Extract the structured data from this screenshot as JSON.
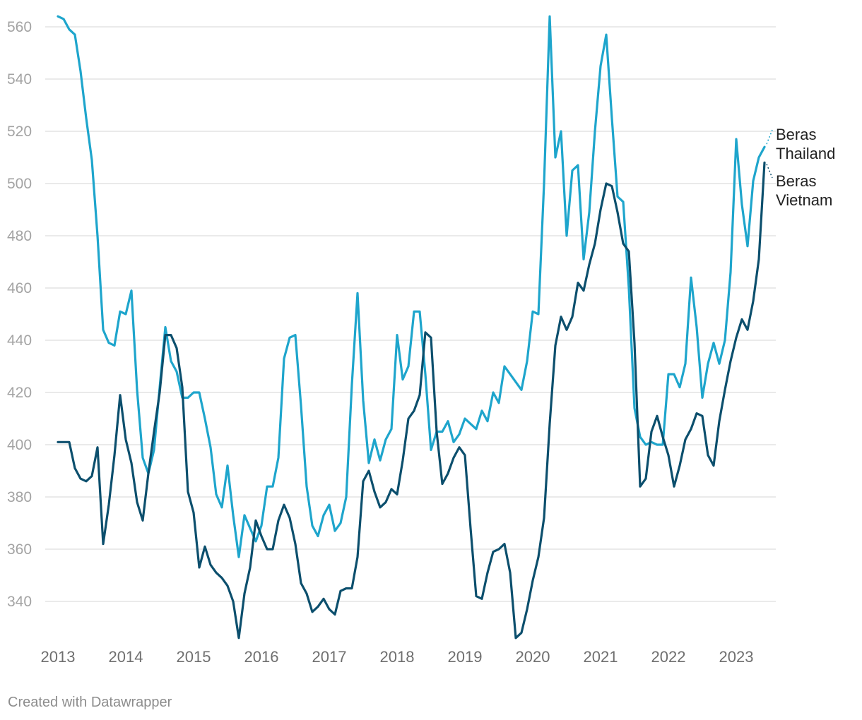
{
  "chart_data": {
    "type": "line",
    "title": "",
    "xlabel": "",
    "ylabel": "",
    "x_start": "2013-01",
    "x_frequency": "monthly",
    "xlim": [
      "2013-01",
      "2023-08"
    ],
    "ylim": [
      325,
      565
    ],
    "y_ticks": [
      340,
      360,
      380,
      400,
      420,
      440,
      460,
      480,
      500,
      520,
      540,
      560
    ],
    "x_ticks": [
      "2013",
      "2014",
      "2015",
      "2016",
      "2017",
      "2018",
      "2019",
      "2020",
      "2021",
      "2022",
      "2023"
    ],
    "grid": true,
    "legend": "inline labels at line ends (right)",
    "series": [
      {
        "name": "Beras Thailand",
        "color": "#1ea5cc",
        "values": [
          564,
          563,
          559,
          557,
          543,
          525,
          509,
          480,
          444,
          439,
          438,
          451,
          450,
          459,
          421,
          395,
          389,
          398,
          422,
          445,
          432,
          428,
          418,
          418,
          420,
          420,
          410,
          399,
          381,
          376,
          392,
          373,
          357,
          373,
          368,
          363,
          369,
          384,
          384,
          395,
          433,
          441,
          442,
          415,
          384,
          369,
          365,
          373,
          377,
          367,
          370,
          380,
          423,
          458,
          417,
          393,
          402,
          394,
          402,
          406,
          442,
          425,
          430,
          451,
          451,
          427,
          398,
          405,
          405,
          409,
          401,
          404,
          410,
          408,
          406,
          413,
          409,
          420,
          416,
          430,
          427,
          424,
          421,
          432,
          451,
          450,
          500,
          564,
          510,
          520,
          480,
          505,
          507,
          471,
          489,
          520,
          545,
          557,
          525,
          495,
          493,
          460,
          414,
          403,
          400,
          401,
          400,
          400,
          427,
          427,
          422,
          431,
          464,
          445,
          418,
          431,
          439,
          431,
          440,
          466,
          517,
          492,
          476,
          501,
          510,
          514
        ]
      },
      {
        "name": "Beras Vietnam",
        "color": "#0c4f6d",
        "values": [
          401,
          401,
          401,
          391,
          387,
          386,
          388,
          399,
          362,
          377,
          396,
          419,
          402,
          393,
          378,
          371,
          389,
          405,
          420,
          442,
          442,
          437,
          422,
          382,
          374,
          353,
          361,
          354,
          351,
          349,
          346,
          340,
          326,
          343,
          353,
          371,
          365,
          360,
          360,
          371,
          377,
          372,
          362,
          347,
          343,
          336,
          338,
          341,
          337,
          335,
          344,
          345,
          345,
          357,
          386,
          390,
          382,
          376,
          378,
          383,
          381,
          394,
          410,
          413,
          419,
          443,
          441,
          405,
          385,
          389,
          395,
          399,
          396,
          368,
          342,
          341,
          351,
          359,
          360,
          362,
          351,
          326,
          328,
          337,
          348,
          357,
          372,
          408,
          438,
          449,
          444,
          449,
          462,
          459,
          469,
          477,
          490,
          500,
          499,
          489,
          477,
          474,
          439,
          384,
          387,
          405,
          411,
          403,
          396,
          384,
          392,
          402,
          406,
          412,
          411,
          396,
          392,
          409,
          421,
          432,
          441,
          448,
          444,
          455,
          471,
          508
        ]
      }
    ]
  },
  "labels": {
    "thailand_line1": "Beras",
    "thailand_line2": "Thailand",
    "vietnam_line1": "Beras",
    "vietnam_line2": "Vietnam"
  },
  "footer": "Created with Datawrapper"
}
